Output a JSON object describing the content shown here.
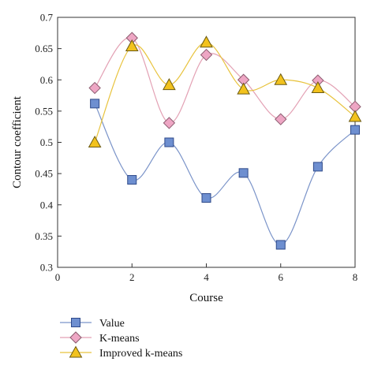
{
  "chart_data": {
    "type": "line",
    "xlabel": "Course",
    "ylabel": "Contour coefficient",
    "xlim": [
      0,
      8
    ],
    "ylim": [
      0.3,
      0.7
    ],
    "x_ticks": [
      "0",
      "2",
      "4",
      "6",
      "8"
    ],
    "y_ticks": [
      "0.3",
      "0.35",
      "0.4",
      "0.45",
      "0.5",
      "0.55",
      "0.6",
      "0.65",
      "0.7"
    ],
    "grid": false,
    "legend_position": "bottom-left",
    "series": [
      {
        "name": "Value",
        "marker": "square",
        "line_color": "#7b94c9",
        "marker_fill": "#6e8fd0",
        "marker_stroke": "#2f4a8a",
        "x": [
          1,
          2,
          3,
          4,
          5,
          6,
          7,
          8
        ],
        "values": [
          0.562,
          0.44,
          0.5,
          0.411,
          0.451,
          0.336,
          0.461,
          0.52
        ]
      },
      {
        "name": "K-means",
        "marker": "diamond",
        "line_color": "#e3a1b4",
        "marker_fill": "#eea6c4",
        "marker_stroke": "#8a5a6e",
        "x": [
          1,
          2,
          3,
          4,
          5,
          6,
          7,
          8
        ],
        "values": [
          0.587,
          0.667,
          0.531,
          0.64,
          0.6,
          0.537,
          0.599,
          0.557
        ]
      },
      {
        "name": "Improved k-means",
        "marker": "triangle",
        "line_color": "#e8c33d",
        "marker_fill": "#f2c21d",
        "marker_stroke": "#6b5a12",
        "x": [
          1,
          2,
          3,
          4,
          5,
          6,
          7,
          8
        ],
        "values": [
          0.5,
          0.654,
          0.592,
          0.66,
          0.585,
          0.6,
          0.587,
          0.541
        ]
      }
    ]
  }
}
